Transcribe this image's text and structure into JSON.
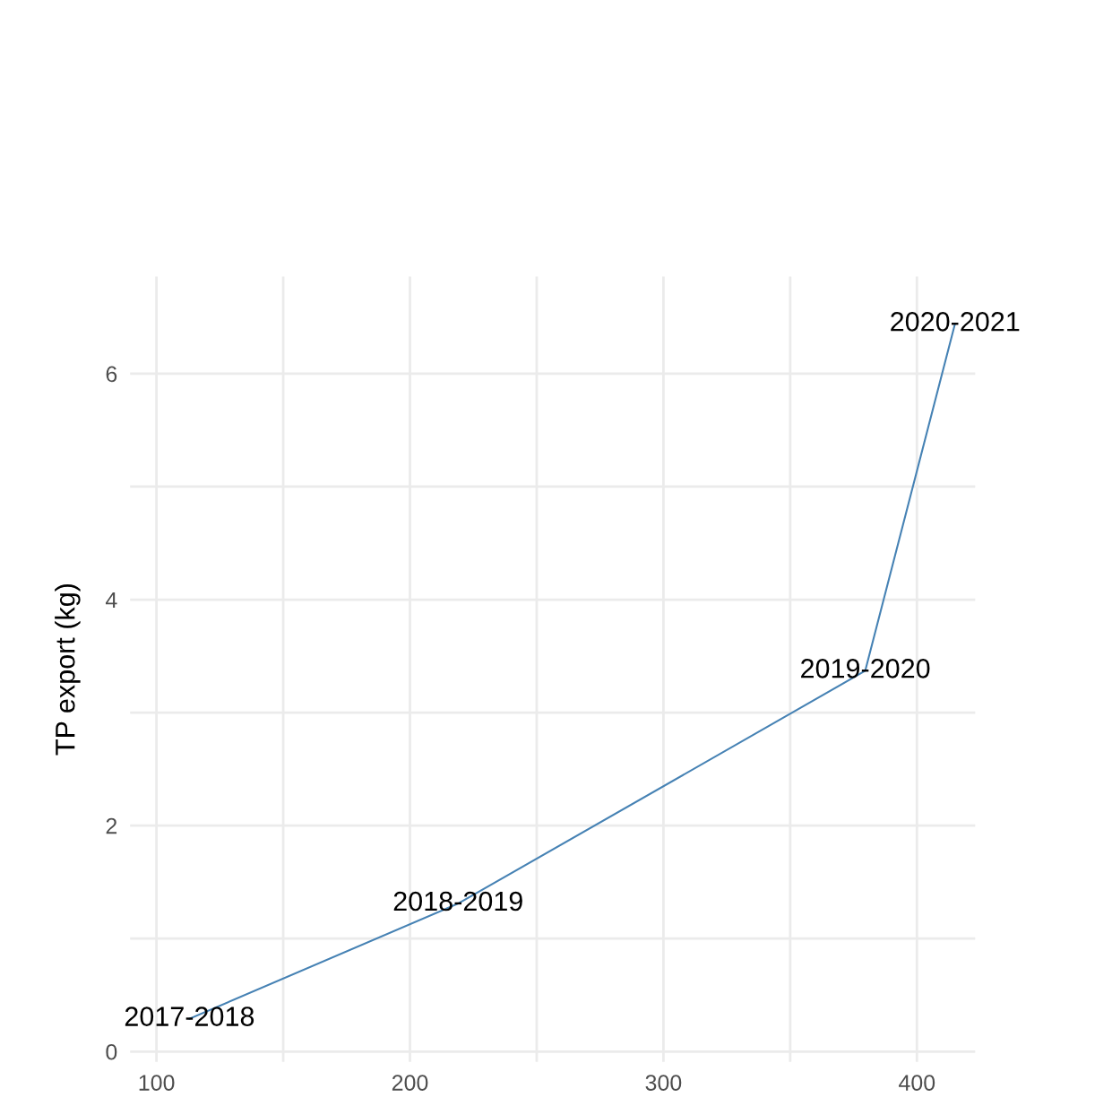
{
  "chart_data": {
    "type": "line",
    "ylabel": "TP export (kg)",
    "x": [
      113,
      219,
      379.6,
      415
    ],
    "series": [
      {
        "color": "#4682b4",
        "values": [
          0.29,
          1.31,
          3.37,
          6.44
        ]
      }
    ],
    "annotations": [
      {
        "text": "2017-2018",
        "x": 113,
        "y": 0.29
      },
      {
        "text": "2018-2019",
        "x": 219,
        "y": 1.31
      },
      {
        "text": "2019-2020",
        "x": 379.6,
        "y": 3.37
      },
      {
        "text": "2020-2021",
        "x": 415,
        "y": 6.44
      }
    ],
    "xlim": [
      89.6,
      423
    ],
    "ylim": [
      -0.09,
      6.86
    ],
    "xticks": [
      100,
      {
        "value": 150,
        "label": null
      },
      200,
      {
        "value": 250,
        "label": null
      },
      300,
      {
        "value": 350,
        "label": null
      },
      400
    ],
    "yticks": [
      0,
      {
        "value": 1,
        "label": null
      },
      2,
      {
        "value": 3,
        "label": null
      },
      4,
      {
        "value": 5,
        "label": null
      },
      6
    ],
    "grid": true,
    "marker": "none",
    "line_style": "solid"
  }
}
